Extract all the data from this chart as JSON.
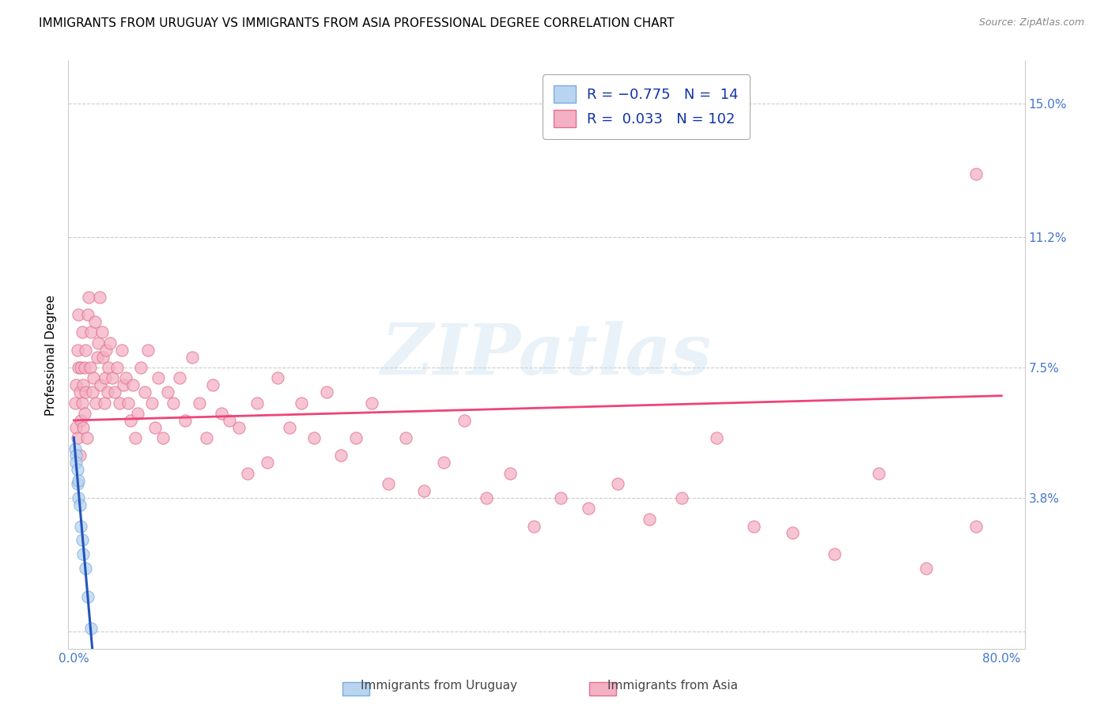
{
  "title": "IMMIGRANTS FROM URUGUAY VS IMMIGRANTS FROM ASIA PROFESSIONAL DEGREE CORRELATION CHART",
  "source": "Source: ZipAtlas.com",
  "ylabel": "Professional Degree",
  "x_ticks": [
    0.0,
    0.1,
    0.2,
    0.3,
    0.4,
    0.5,
    0.6,
    0.7,
    0.8
  ],
  "x_tick_labels": [
    "0.0%",
    "",
    "",
    "",
    "",
    "",
    "",
    "",
    "80.0%"
  ],
  "y_ticks": [
    0.0,
    0.038,
    0.075,
    0.112,
    0.15
  ],
  "y_tick_labels": [
    "",
    "3.8%",
    "7.5%",
    "11.2%",
    "15.0%"
  ],
  "xlim": [
    -0.005,
    0.82
  ],
  "ylim": [
    -0.005,
    0.162
  ],
  "watermark": "ZIPatlas",
  "background_color": "#ffffff",
  "grid_color": "#cccccc",
  "title_fontsize": 11,
  "axis_label_fontsize": 11,
  "tick_fontsize": 11,
  "tick_color": "#4477cc",
  "uruguay_scatter_color": "#b8d4f0",
  "uruguay_scatter_edge": "#7aacdc",
  "asia_scatter_color": "#f4b0c4",
  "asia_scatter_edge": "#e07090",
  "uruguay_line_color": "#2255bb",
  "asia_line_color": "#ee4477",
  "uruguay_x": [
    0.001,
    0.002,
    0.002,
    0.003,
    0.003,
    0.004,
    0.004,
    0.005,
    0.006,
    0.007,
    0.008,
    0.01,
    0.012,
    0.015
  ],
  "uruguay_y": [
    0.052,
    0.05,
    0.048,
    0.046,
    0.042,
    0.043,
    0.038,
    0.036,
    0.03,
    0.026,
    0.022,
    0.018,
    0.01,
    0.001
  ],
  "asia_x": [
    0.001,
    0.002,
    0.002,
    0.003,
    0.003,
    0.004,
    0.004,
    0.005,
    0.005,
    0.006,
    0.006,
    0.007,
    0.007,
    0.008,
    0.008,
    0.009,
    0.009,
    0.01,
    0.01,
    0.011,
    0.012,
    0.013,
    0.014,
    0.015,
    0.016,
    0.017,
    0.018,
    0.019,
    0.02,
    0.021,
    0.022,
    0.023,
    0.024,
    0.025,
    0.026,
    0.027,
    0.028,
    0.029,
    0.03,
    0.031,
    0.033,
    0.035,
    0.037,
    0.039,
    0.041,
    0.043,
    0.045,
    0.047,
    0.049,
    0.051,
    0.053,
    0.055,
    0.058,
    0.061,
    0.064,
    0.067,
    0.07,
    0.073,
    0.077,
    0.081,
    0.086,
    0.091,
    0.096,
    0.102,
    0.108,
    0.114,
    0.12,
    0.127,
    0.134,
    0.142,
    0.15,
    0.158,
    0.167,
    0.176,
    0.186,
    0.196,
    0.207,
    0.218,
    0.23,
    0.243,
    0.257,
    0.271,
    0.286,
    0.302,
    0.319,
    0.337,
    0.356,
    0.376,
    0.397,
    0.42,
    0.444,
    0.469,
    0.496,
    0.524,
    0.554,
    0.586,
    0.62,
    0.656,
    0.694,
    0.735,
    0.778,
    0.778
  ],
  "asia_y": [
    0.065,
    0.07,
    0.058,
    0.08,
    0.055,
    0.075,
    0.09,
    0.068,
    0.05,
    0.075,
    0.06,
    0.085,
    0.065,
    0.07,
    0.058,
    0.075,
    0.062,
    0.08,
    0.068,
    0.055,
    0.09,
    0.095,
    0.075,
    0.085,
    0.068,
    0.072,
    0.088,
    0.065,
    0.078,
    0.082,
    0.095,
    0.07,
    0.085,
    0.078,
    0.065,
    0.072,
    0.08,
    0.068,
    0.075,
    0.082,
    0.072,
    0.068,
    0.075,
    0.065,
    0.08,
    0.07,
    0.072,
    0.065,
    0.06,
    0.07,
    0.055,
    0.062,
    0.075,
    0.068,
    0.08,
    0.065,
    0.058,
    0.072,
    0.055,
    0.068,
    0.065,
    0.072,
    0.06,
    0.078,
    0.065,
    0.055,
    0.07,
    0.062,
    0.06,
    0.058,
    0.045,
    0.065,
    0.048,
    0.072,
    0.058,
    0.065,
    0.055,
    0.068,
    0.05,
    0.055,
    0.065,
    0.042,
    0.055,
    0.04,
    0.048,
    0.06,
    0.038,
    0.045,
    0.03,
    0.038,
    0.035,
    0.042,
    0.032,
    0.038,
    0.055,
    0.03,
    0.028,
    0.022,
    0.045,
    0.018,
    0.13,
    0.03
  ]
}
